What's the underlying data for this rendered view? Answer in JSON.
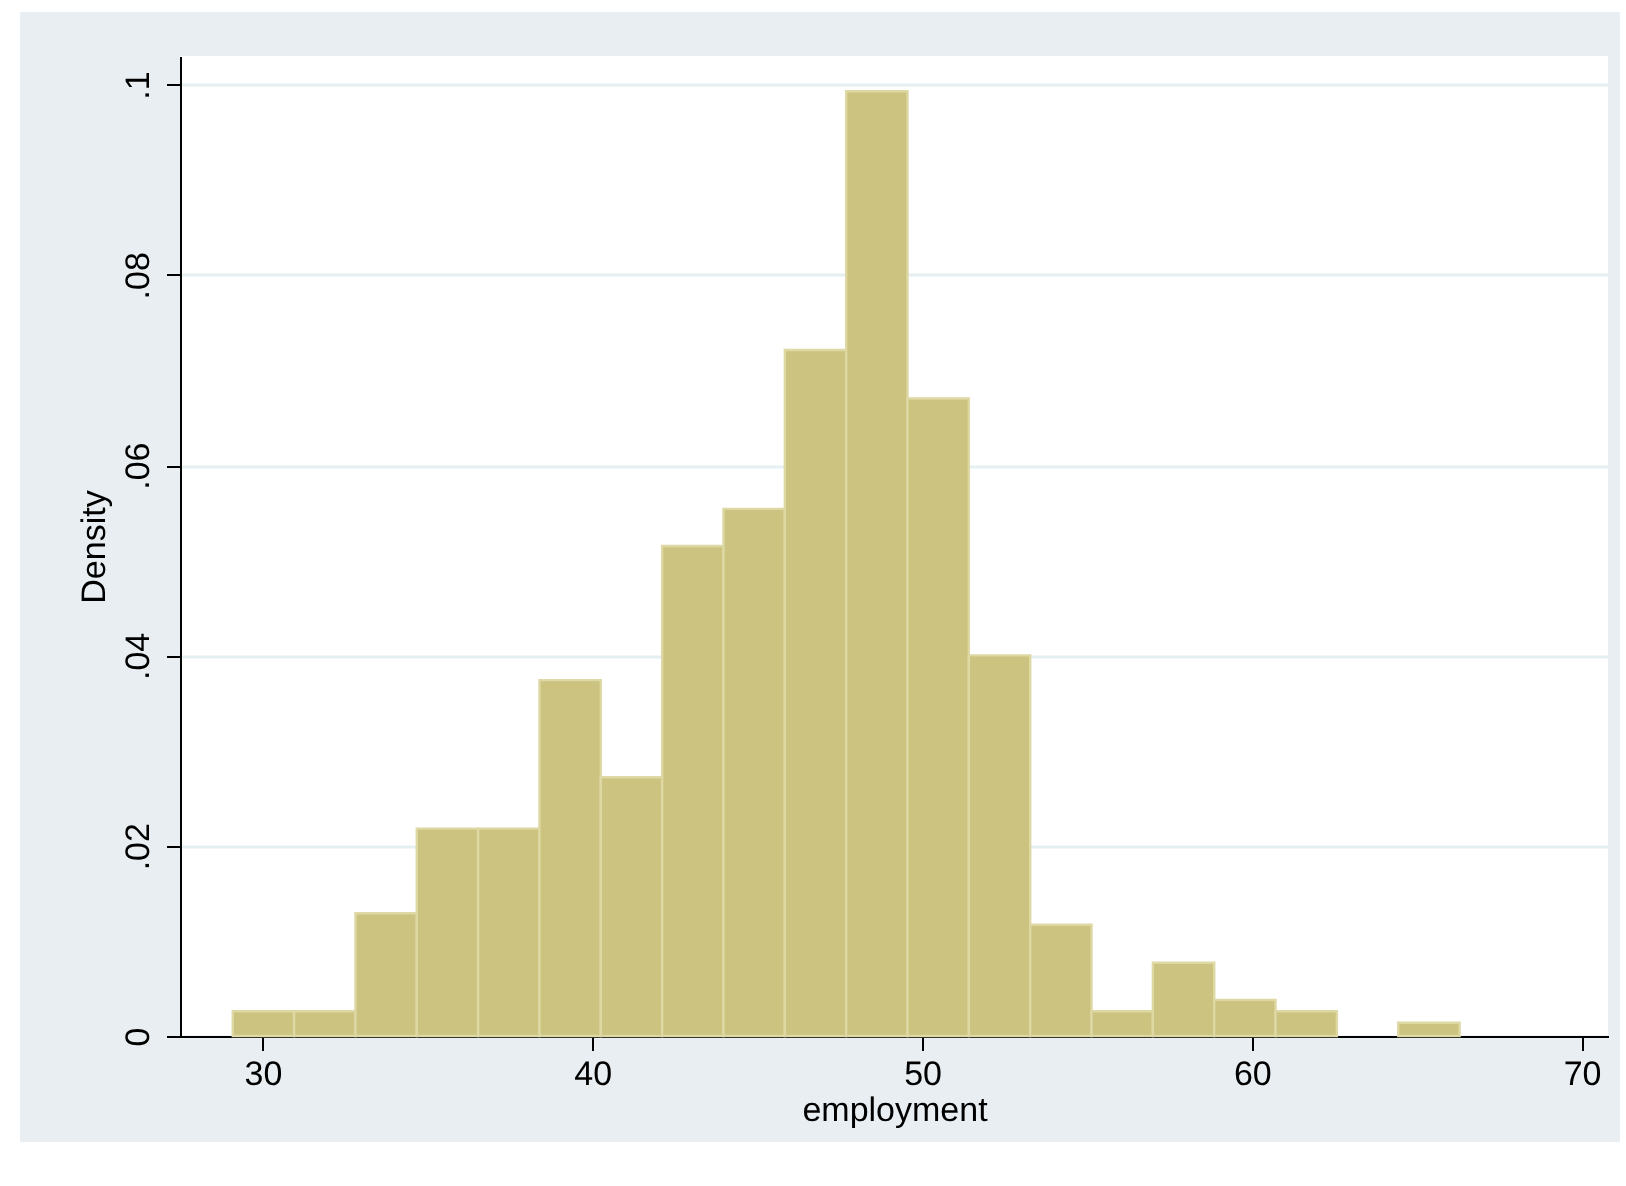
{
  "chart_data": {
    "type": "histogram",
    "xlabel": "employment",
    "ylabel": "Density",
    "bins": [
      29.1,
      30.96,
      32.82,
      34.68,
      36.54,
      38.4,
      40.26,
      42.12,
      43.98,
      45.84,
      47.7,
      49.56,
      51.42,
      53.28,
      55.14,
      57.0,
      58.86,
      60.72,
      62.58,
      64.44,
      66.3
    ],
    "values": [
      0.0026,
      0.0026,
      0.0129,
      0.0218,
      0.0218,
      0.0374,
      0.0272,
      0.0515,
      0.0554,
      0.0721,
      0.0993,
      0.067,
      0.04,
      0.0117,
      0.0026,
      0.0077,
      0.0038,
      0.0026,
      0,
      0.0014
    ],
    "color": "#cbc37f",
    "xlim": [
      27.5,
      70.8
    ],
    "xticks": [
      30,
      40,
      50,
      60,
      70
    ],
    "ylim": [
      0,
      0.103
    ],
    "yticks": [
      {
        "value": 0,
        "label": "0"
      },
      {
        "value": 0.02,
        "label": ".02"
      },
      {
        "value": 0.04,
        "label": ".04"
      },
      {
        "value": 0.06,
        "label": ".06"
      },
      {
        "value": 0.08,
        "label": ".08"
      },
      {
        "value": 0.1,
        "label": ".1"
      }
    ],
    "grid": "y"
  }
}
